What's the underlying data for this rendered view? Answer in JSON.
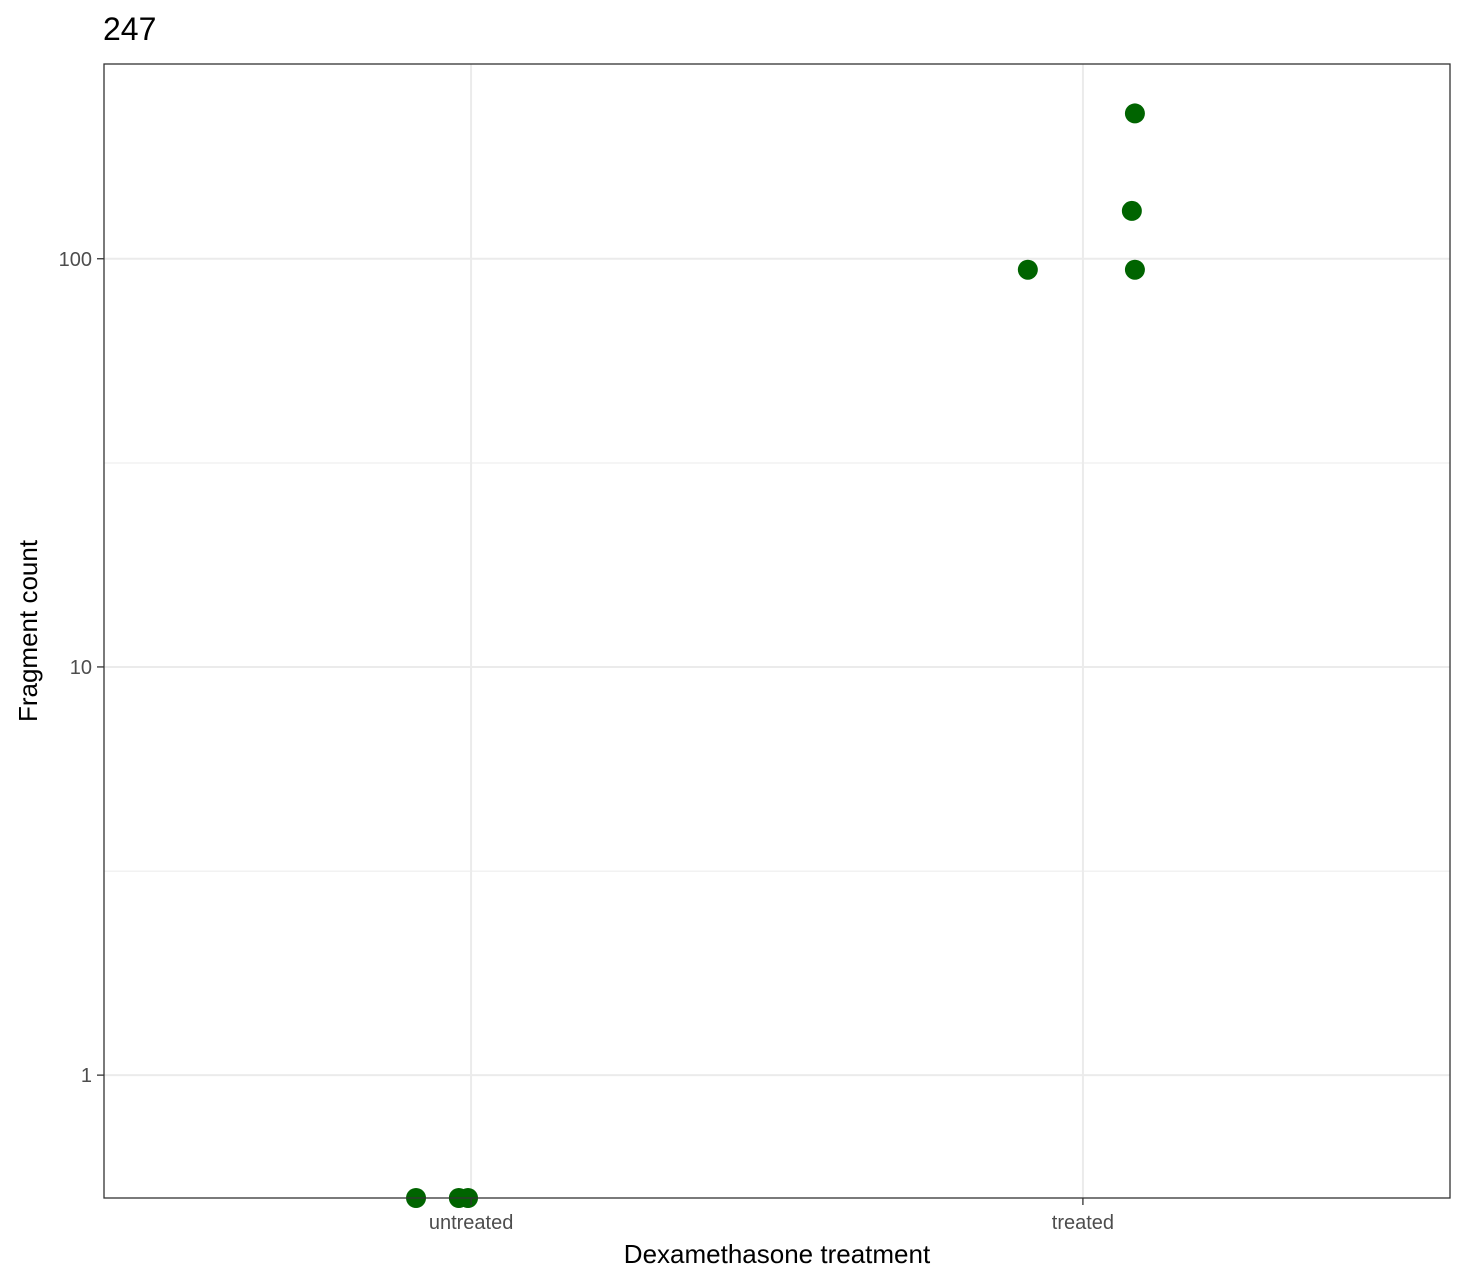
{
  "chart_data": {
    "type": "scatter",
    "title": "247",
    "xlabel": "Dexamethasone treatment",
    "ylabel": "Fragment count",
    "y_scale": "log10",
    "ylim": [
      0.5,
      300
    ],
    "y_ticks": [
      {
        "value": 1,
        "label": "1"
      },
      {
        "value": 10,
        "label": "10"
      },
      {
        "value": 100,
        "label": "100"
      }
    ],
    "y_minor_ticks": [
      3.16,
      31.6
    ],
    "categories": [
      "untreated",
      "treated"
    ],
    "grid": true,
    "point_color": "#006400",
    "series": [
      {
        "points": [
          {
            "category": "untreated",
            "jitter": -0.09,
            "y": 0.5
          },
          {
            "category": "untreated",
            "jitter": -0.02,
            "y": 0.5
          },
          {
            "category": "untreated",
            "jitter": -0.005,
            "y": 0.5
          },
          {
            "category": "treated",
            "jitter": -0.09,
            "y": 94
          },
          {
            "category": "treated",
            "jitter": 0.08,
            "y": 131
          },
          {
            "category": "treated",
            "jitter": 0.085,
            "y": 94
          },
          {
            "category": "treated",
            "jitter": 0.085,
            "y": 227
          }
        ]
      }
    ]
  }
}
